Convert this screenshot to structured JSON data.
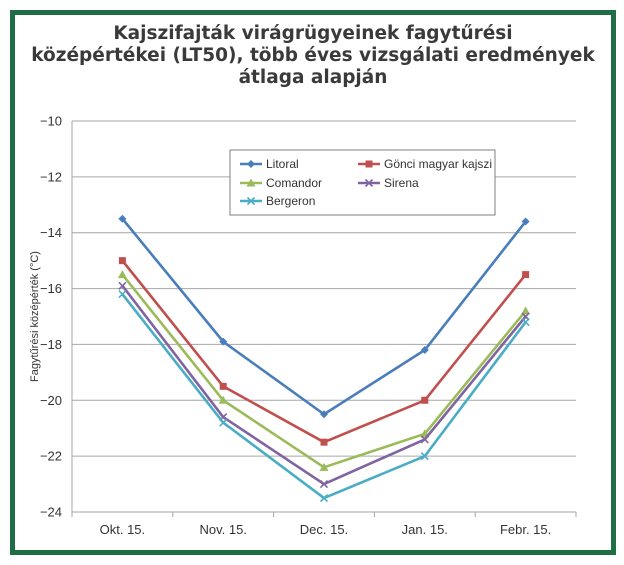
{
  "chart_data": {
    "type": "line",
    "title_lines": [
      "Kajszifajták virágrügyeinek fagytűrési",
      "középértékei (LT50), több éves vizsgálati eredmények",
      "átlaga alapján"
    ],
    "ylabel": "Fagytűrési középérték (°C)",
    "xlabel": "",
    "categories": [
      "Okt. 15.",
      "Nov. 15.",
      "Dec. 15.",
      "Jan. 15.",
      "Febr. 15."
    ],
    "ylim": [
      -24,
      -10
    ],
    "yticks": [
      -10,
      -12,
      -14,
      -16,
      -18,
      -20,
      -22,
      -24
    ],
    "grid": true,
    "legend_position": "top-center",
    "series": [
      {
        "name": "Litoral",
        "color": "#4a7ebb",
        "marker": "diamond",
        "values": [
          -13.5,
          -17.9,
          -20.5,
          -18.2,
          -13.6
        ]
      },
      {
        "name": "Gönci magyar kajszi",
        "color": "#c0504d",
        "marker": "square",
        "values": [
          -15.0,
          -19.5,
          -21.5,
          -20.0,
          -15.5
        ]
      },
      {
        "name": "Comandor",
        "color": "#9bbb59",
        "marker": "triangle",
        "values": [
          -15.5,
          -20.0,
          -22.4,
          -21.2,
          -16.8
        ]
      },
      {
        "name": "Sirena",
        "color": "#8064a2",
        "marker": "x",
        "values": [
          -15.9,
          -20.6,
          -23.0,
          -21.4,
          -17.0
        ]
      },
      {
        "name": "Bergeron",
        "color": "#4bacc6",
        "marker": "x",
        "values": [
          -16.2,
          -20.8,
          -23.5,
          -22.0,
          -17.2
        ]
      }
    ]
  }
}
